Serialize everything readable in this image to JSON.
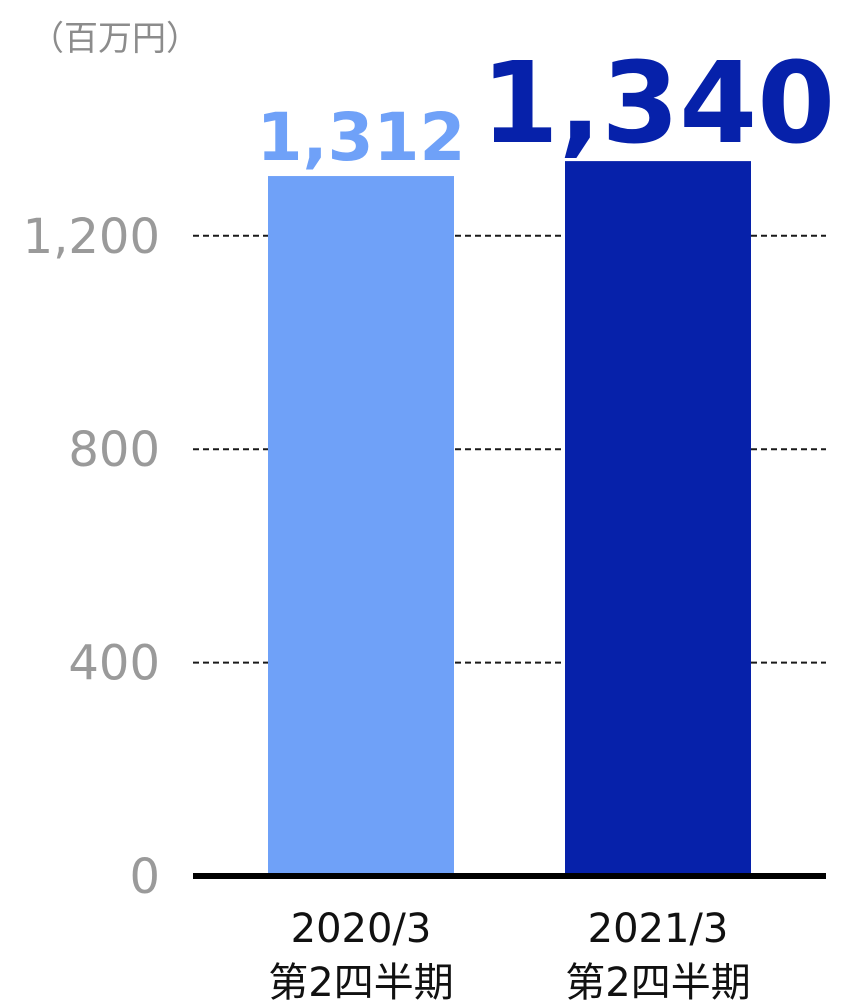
{
  "chart_data": {
    "type": "bar",
    "unit_label": "（百万円）",
    "categories": [
      [
        "2020/3",
        "第2四半期"
      ],
      [
        "2021/3",
        "第2四半期"
      ]
    ],
    "values": [
      1312,
      1340
    ],
    "value_labels": [
      "1,312",
      "1,340"
    ],
    "bar_colors": [
      "#6fa1f8",
      "#0621aa"
    ],
    "label_colors": [
      "#6fa1f8",
      "#0621aa"
    ],
    "yticks": [
      0,
      400,
      800,
      1200
    ],
    "ytick_labels": [
      "0",
      "400",
      "800",
      "1,200"
    ],
    "ylim": [
      0,
      1340
    ],
    "grid": true,
    "legend": false
  }
}
